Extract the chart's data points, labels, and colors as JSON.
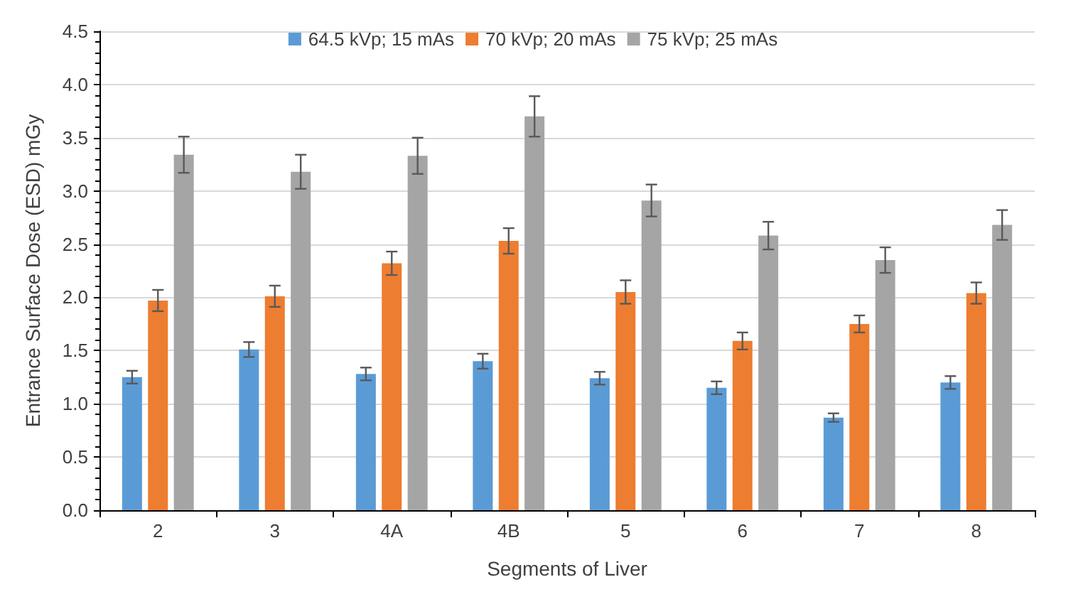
{
  "chart_data": {
    "type": "bar",
    "xlabel": "Segments of Liver",
    "ylabel": "Entrance Surface Dose (ESD) mGy",
    "categories": [
      "2",
      "3",
      "4A",
      "4B",
      "5",
      "6",
      "7",
      "8"
    ],
    "series": [
      {
        "name": "64.5 kVp; 15 mAs",
        "color": "#5b9bd5",
        "values": [
          1.25,
          1.51,
          1.28,
          1.4,
          1.24,
          1.15,
          0.87,
          1.2
        ],
        "errors": [
          0.06,
          0.07,
          0.06,
          0.07,
          0.06,
          0.06,
          0.04,
          0.06
        ]
      },
      {
        "name": "70 kVp; 20 mAs",
        "color": "#ed7d31",
        "values": [
          1.97,
          2.01,
          2.32,
          2.53,
          2.05,
          1.59,
          1.75,
          2.04
        ],
        "errors": [
          0.1,
          0.1,
          0.11,
          0.12,
          0.11,
          0.08,
          0.08,
          0.1
        ]
      },
      {
        "name": "75 kVp; 25 mAs",
        "color": "#a5a5a5",
        "values": [
          3.34,
          3.18,
          3.33,
          3.7,
          2.91,
          2.58,
          2.35,
          2.68
        ],
        "errors": [
          0.17,
          0.16,
          0.17,
          0.19,
          0.15,
          0.13,
          0.12,
          0.14
        ]
      }
    ],
    "ylim": [
      0,
      4.5
    ],
    "yticks": [
      {
        "value": 0,
        "label": "0.0"
      },
      0.5,
      {
        "value": 1,
        "label": "1.0"
      },
      1.5,
      {
        "value": 2,
        "label": "2.0"
      },
      2.5,
      {
        "value": 3,
        "label": "3.0"
      },
      3.5,
      {
        "value": 4,
        "label": "4.0"
      },
      4.5
    ],
    "grid": "y",
    "legend": "top"
  }
}
